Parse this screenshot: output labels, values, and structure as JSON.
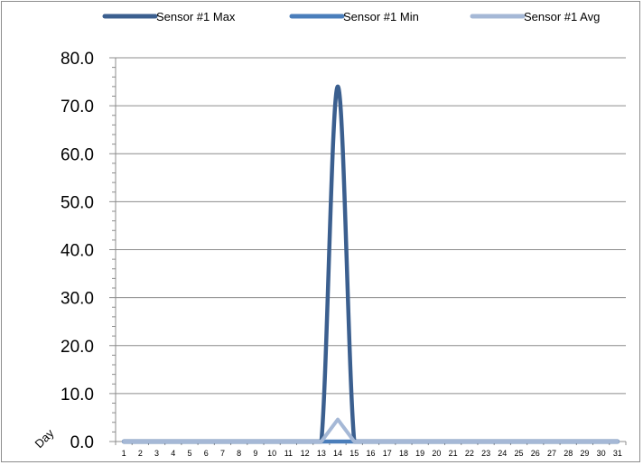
{
  "chart_data": {
    "type": "line",
    "title": "",
    "xlabel": "Day",
    "ylabel": "",
    "x": [
      1,
      2,
      3,
      4,
      5,
      6,
      7,
      8,
      9,
      10,
      11,
      12,
      13,
      14,
      15,
      16,
      17,
      18,
      19,
      20,
      21,
      22,
      23,
      24,
      25,
      26,
      27,
      28,
      29,
      30,
      31
    ],
    "y_ticks": [
      "0.0",
      "10.0",
      "20.0",
      "30.0",
      "40.0",
      "50.0",
      "60.0",
      "70.0",
      "80.0"
    ],
    "ylim": [
      0,
      80
    ],
    "grid": true,
    "legend_position": "top",
    "series": [
      {
        "name": "Sensor #1 Max",
        "color": "#3b5f8f",
        "values": [
          0,
          0,
          0,
          0,
          0,
          0,
          0,
          0,
          0,
          0,
          0,
          0,
          0,
          74,
          0,
          0,
          0,
          0,
          0,
          0,
          0,
          0,
          0,
          0,
          0,
          0,
          0,
          0,
          0,
          0,
          0
        ]
      },
      {
        "name": "Sensor #1 Min",
        "color": "#4a7ebb",
        "values": [
          0,
          0,
          0,
          0,
          0,
          0,
          0,
          0,
          0,
          0,
          0,
          0,
          0,
          0,
          0,
          0,
          0,
          0,
          0,
          0,
          0,
          0,
          0,
          0,
          0,
          0,
          0,
          0,
          0,
          0,
          0
        ]
      },
      {
        "name": "Sensor #1 Avg",
        "color": "#a5b8d6",
        "values": [
          0,
          0,
          0,
          0,
          0,
          0,
          0,
          0,
          0,
          0,
          0,
          0,
          0,
          4.6,
          0,
          0,
          0,
          0,
          0,
          0,
          0,
          0,
          0,
          0,
          0,
          0,
          0,
          0,
          0,
          0,
          0
        ]
      }
    ]
  }
}
